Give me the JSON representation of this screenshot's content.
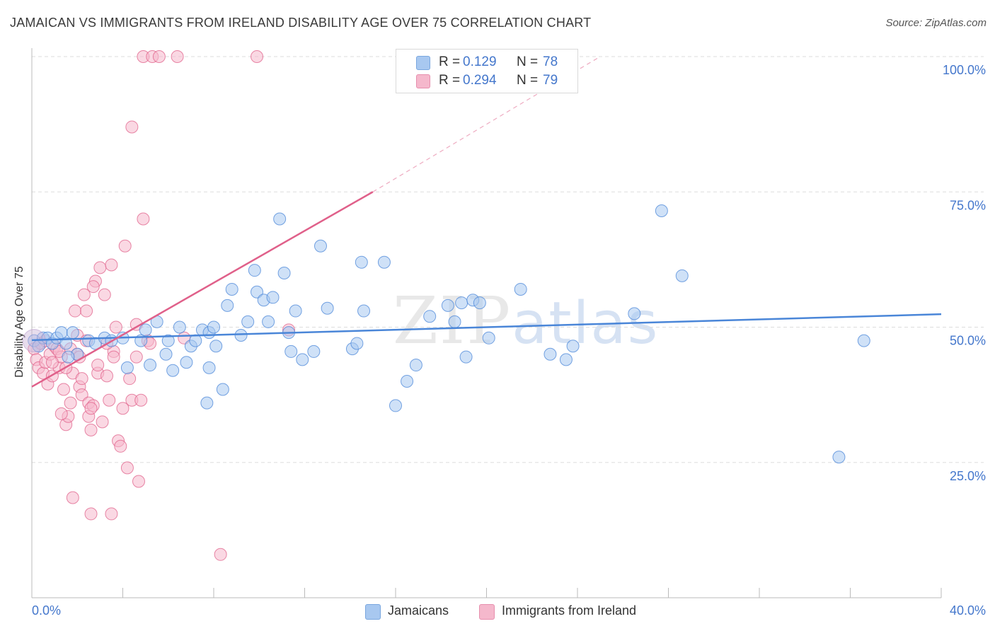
{
  "header": {
    "title": "JAMAICAN VS IMMIGRANTS FROM IRELAND DISABILITY AGE OVER 75 CORRELATION CHART",
    "source": "Source: ZipAtlas.com"
  },
  "watermark": {
    "zip": "ZIP",
    "atlas": "atlas"
  },
  "legend": {
    "rows": [
      {
        "r_label": "R =",
        "r_value": "0.129",
        "n_label": "N =",
        "n_value": "78",
        "color": "#a8c8f0"
      },
      {
        "r_label": "R =",
        "r_value": "0.294",
        "n_label": "N =",
        "n_value": "79",
        "color": "#f5b8cc"
      }
    ]
  },
  "bottom_legend": {
    "items": [
      {
        "label": "Jamaicans",
        "color": "#a8c8f0"
      },
      {
        "label": "Immigrants from Ireland",
        "color": "#f5b8cc"
      }
    ]
  },
  "chart_data": {
    "type": "scatter",
    "title": "JAMAICAN VS IMMIGRANTS FROM IRELAND DISABILITY AGE OVER 75 CORRELATION CHART",
    "xlabel": "",
    "ylabel": "Disability Age Over 75",
    "xlim": [
      0,
      40
    ],
    "ylim": [
      0,
      105
    ],
    "x_tick_labels": [
      "0.0%",
      "40.0%"
    ],
    "y_ticks": [
      25,
      50,
      75,
      100
    ],
    "y_tick_labels": [
      "25.0%",
      "50.0%",
      "75.0%",
      "100.0%"
    ],
    "grid": true,
    "legend_position": "top-center",
    "series": [
      {
        "name": "Jamaicans",
        "color": "#4a86d8",
        "fill": "#a8c8f0",
        "trend": {
          "x": [
            0,
            40
          ],
          "y": [
            47.6,
            52.4
          ]
        },
        "points": [
          [
            0.1,
            47.5
          ],
          [
            0.3,
            46.5
          ],
          [
            0.5,
            48
          ],
          [
            0.7,
            48
          ],
          [
            0.9,
            47
          ],
          [
            1.1,
            48
          ],
          [
            1.3,
            49
          ],
          [
            1.5,
            47
          ],
          [
            1.8,
            49
          ],
          [
            2.0,
            45
          ],
          [
            2.5,
            47.5
          ],
          [
            2.8,
            47
          ],
          [
            3.2,
            48
          ],
          [
            3.5,
            47.5
          ],
          [
            4.0,
            48
          ],
          [
            4.2,
            42.5
          ],
          [
            4.8,
            47.5
          ],
          [
            5.0,
            49.5
          ],
          [
            5.2,
            43
          ],
          [
            5.5,
            51
          ],
          [
            5.9,
            45
          ],
          [
            6.0,
            47.5
          ],
          [
            6.2,
            42
          ],
          [
            6.5,
            50
          ],
          [
            6.8,
            43.5
          ],
          [
            7.0,
            46.5
          ],
          [
            7.2,
            47.5
          ],
          [
            7.5,
            49.5
          ],
          [
            7.8,
            49
          ],
          [
            8.0,
            50
          ],
          [
            7.7,
            36
          ],
          [
            7.8,
            42.5
          ],
          [
            8.1,
            46.5
          ],
          [
            8.4,
            38.5
          ],
          [
            8.6,
            54
          ],
          [
            8.8,
            57
          ],
          [
            9.2,
            48.5
          ],
          [
            9.5,
            51
          ],
          [
            9.8,
            60.5
          ],
          [
            9.9,
            56.5
          ],
          [
            10.2,
            55
          ],
          [
            10.4,
            51
          ],
          [
            10.6,
            55.5
          ],
          [
            10.9,
            70
          ],
          [
            11.1,
            60
          ],
          [
            11.3,
            49
          ],
          [
            11.4,
            45.5
          ],
          [
            11.6,
            53
          ],
          [
            11.9,
            44
          ],
          [
            12.4,
            45.5
          ],
          [
            12.7,
            65
          ],
          [
            13.0,
            53.5
          ],
          [
            14.1,
            46
          ],
          [
            14.3,
            47
          ],
          [
            14.5,
            62
          ],
          [
            14.6,
            53
          ],
          [
            15.5,
            62
          ],
          [
            16.0,
            35.5
          ],
          [
            16.5,
            40
          ],
          [
            16.9,
            43
          ],
          [
            17.5,
            52
          ],
          [
            18.3,
            54
          ],
          [
            18.6,
            51
          ],
          [
            18.9,
            54.5
          ],
          [
            19.1,
            44.5
          ],
          [
            19.4,
            55
          ],
          [
            19.7,
            54.5
          ],
          [
            20.1,
            48
          ],
          [
            21.5,
            57
          ],
          [
            22.8,
            45
          ],
          [
            23.5,
            44
          ],
          [
            23.8,
            46.5
          ],
          [
            26.5,
            52.5
          ],
          [
            27.7,
            71.5
          ],
          [
            28.6,
            59.5
          ],
          [
            35.5,
            26
          ],
          [
            36.6,
            47.5
          ],
          [
            1.6,
            44.5
          ]
        ]
      },
      {
        "name": "Immigrants from Ireland",
        "color": "#e0608a",
        "fill": "#f5b8cc",
        "trend": {
          "x": [
            0,
            15
          ],
          "y": [
            39,
            75
          ]
        },
        "trend_dashed": {
          "x": [
            15,
            25
          ],
          "y": [
            75,
            100
          ]
        },
        "points": [
          [
            0.1,
            46
          ],
          [
            0.2,
            44
          ],
          [
            0.3,
            42.5
          ],
          [
            0.4,
            47
          ],
          [
            0.5,
            41.5
          ],
          [
            0.6,
            43.5
          ],
          [
            0.7,
            39.5
          ],
          [
            0.8,
            45
          ],
          [
            0.9,
            41
          ],
          [
            1.0,
            46.5
          ],
          [
            1.1,
            46
          ],
          [
            1.2,
            42.5
          ],
          [
            1.3,
            44.5
          ],
          [
            1.4,
            38.5
          ],
          [
            1.5,
            32
          ],
          [
            1.6,
            33.5
          ],
          [
            1.7,
            36
          ],
          [
            1.8,
            41.5
          ],
          [
            1.9,
            53
          ],
          [
            2.0,
            48.5
          ],
          [
            2.1,
            39
          ],
          [
            2.2,
            37.5
          ],
          [
            2.3,
            56
          ],
          [
            2.4,
            53
          ],
          [
            2.5,
            36
          ],
          [
            2.6,
            31
          ],
          [
            2.7,
            35.5
          ],
          [
            2.8,
            58.5
          ],
          [
            2.9,
            41.5
          ],
          [
            3.0,
            61
          ],
          [
            3.2,
            56
          ],
          [
            3.3,
            41
          ],
          [
            3.4,
            36.5
          ],
          [
            3.5,
            61.5
          ],
          [
            3.6,
            45.5
          ],
          [
            3.7,
            50
          ],
          [
            3.8,
            29
          ],
          [
            3.9,
            28
          ],
          [
            4.0,
            35
          ],
          [
            4.1,
            65
          ],
          [
            4.2,
            24
          ],
          [
            4.3,
            40.5
          ],
          [
            4.4,
            36.5
          ],
          [
            4.6,
            50.5
          ],
          [
            4.7,
            21.5
          ],
          [
            4.8,
            36.5
          ],
          [
            4.9,
            70
          ],
          [
            5.1,
            47.5
          ],
          [
            5.2,
            47
          ],
          [
            4.6,
            44.5
          ],
          [
            2.7,
            57.5
          ],
          [
            2.5,
            33.5
          ],
          [
            2.6,
            15.5
          ],
          [
            3.5,
            15.5
          ],
          [
            1.8,
            18.5
          ],
          [
            0.6,
            47.5
          ],
          [
            0.9,
            43.5
          ],
          [
            1.2,
            45.5
          ],
          [
            1.5,
            42.5
          ],
          [
            1.7,
            46
          ],
          [
            2.0,
            45
          ],
          [
            2.2,
            40.5
          ],
          [
            2.4,
            47.5
          ],
          [
            2.6,
            35
          ],
          [
            3.1,
            32.5
          ],
          [
            3.3,
            47
          ],
          [
            3.6,
            44.5
          ],
          [
            2.9,
            43
          ],
          [
            2.1,
            44.5
          ],
          [
            1.3,
            34
          ],
          [
            4.4,
            87
          ],
          [
            4.9,
            100
          ],
          [
            5.3,
            100
          ],
          [
            5.6,
            100
          ],
          [
            6.4,
            100
          ],
          [
            8.3,
            8
          ],
          [
            9.9,
            100
          ],
          [
            11.3,
            49.5
          ],
          [
            6.7,
            48
          ]
        ]
      }
    ]
  }
}
